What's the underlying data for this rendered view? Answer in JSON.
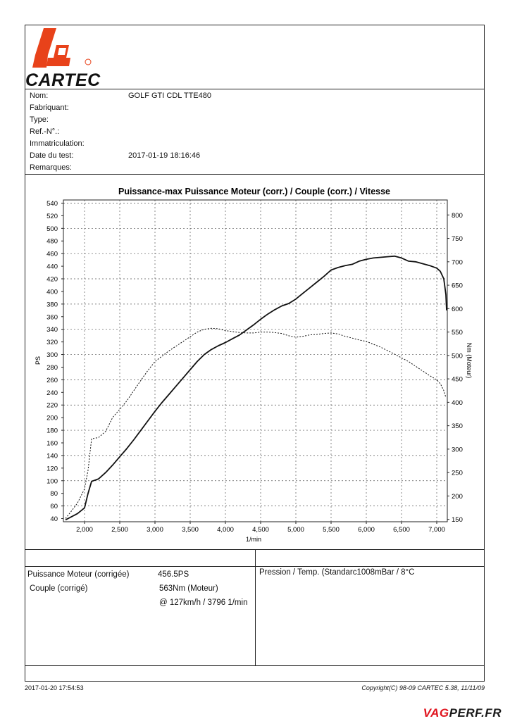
{
  "header": {
    "brand": "CARTEC",
    "fields": [
      {
        "label": "Nom:",
        "value": "GOLF GTI CDL TTE480"
      },
      {
        "label": "Fabriquant:",
        "value": ""
      },
      {
        "label": "Type:",
        "value": ""
      },
      {
        "label": "Ref.-N°.:",
        "value": ""
      },
      {
        "label": "Immatriculation:",
        "value": ""
      },
      {
        "label": "Date du test:",
        "value": "2017-01-19 18:16:46"
      },
      {
        "label": "Remarques:",
        "value": ""
      }
    ]
  },
  "chart_data": {
    "type": "line",
    "title": "Puissance-max Puissance Moteur (corr.) / Couple (corr.) / Vitesse",
    "xlabel": "1/min",
    "ylabel": "PS",
    "y2label": "Nm (Moteur)",
    "xlim": [
      1700,
      7150
    ],
    "ylim": [
      35,
      545
    ],
    "y2lim": [
      145,
      832
    ],
    "x_ticks": [
      2000,
      2500,
      3000,
      3500,
      4000,
      4500,
      5000,
      5500,
      6000,
      6500,
      7000
    ],
    "x_tick_labels": [
      "2,000",
      "2,500",
      "3,000",
      "3,500",
      "4,000",
      "4,500",
      "5,000",
      "5,500",
      "6,000",
      "6,500",
      "7,000"
    ],
    "y_ticks": [
      40,
      60,
      80,
      100,
      120,
      140,
      160,
      180,
      200,
      220,
      240,
      260,
      280,
      300,
      320,
      340,
      360,
      380,
      400,
      420,
      440,
      460,
      480,
      500,
      520,
      540
    ],
    "y2_ticks": [
      150,
      200,
      250,
      300,
      350,
      400,
      450,
      500,
      550,
      600,
      650,
      700,
      750,
      800
    ],
    "grid": true,
    "series": [
      {
        "axis": "left",
        "style": "solid",
        "x": [
          1730,
          1800,
          1900,
          2000,
          2050,
          2100,
          2200,
          2300,
          2400,
          2500,
          2600,
          2700,
          2800,
          2900,
          3000,
          3100,
          3200,
          3300,
          3400,
          3500,
          3600,
          3700,
          3800,
          3900,
          4000,
          4100,
          4200,
          4300,
          4400,
          4500,
          4600,
          4700,
          4800,
          4900,
          5000,
          5100,
          5200,
          5300,
          5400,
          5500,
          5600,
          5700,
          5800,
          5900,
          6000,
          6100,
          6200,
          6300,
          6400,
          6500,
          6600,
          6700,
          6800,
          6900,
          7000,
          7050,
          7100,
          7130,
          7140
        ],
        "values": [
          38,
          42,
          48,
          57,
          80,
          99,
          103,
          113,
          125,
          138,
          151,
          165,
          180,
          195,
          210,
          224,
          237,
          250,
          263,
          276,
          289,
          300,
          308,
          314,
          319,
          325,
          331,
          339,
          347,
          356,
          364,
          371,
          377,
          381,
          388,
          397,
          406,
          415,
          424,
          434,
          438,
          441,
          443,
          448,
          451,
          453,
          454,
          455,
          456,
          453,
          448,
          447,
          444,
          441,
          437,
          432,
          420,
          395,
          370
        ]
      },
      {
        "axis": "right",
        "style": "dashed",
        "x": [
          1730,
          1800,
          1900,
          2000,
          2050,
          2100,
          2200,
          2300,
          2400,
          2500,
          2600,
          2700,
          2800,
          2900,
          3000,
          3200,
          3400,
          3600,
          3700,
          3800,
          3900,
          4000,
          4100,
          4200,
          4300,
          4400,
          4500,
          4600,
          4700,
          4800,
          4900,
          5000,
          5100,
          5200,
          5300,
          5400,
          5500,
          5600,
          5700,
          5800,
          5900,
          6000,
          6200,
          6400,
          6600,
          6800,
          6900,
          7000,
          7050,
          7100,
          7130
        ],
        "values": [
          152,
          165,
          185,
          215,
          255,
          322,
          325,
          338,
          368,
          385,
          403,
          425,
          447,
          468,
          487,
          510,
          530,
          550,
          556,
          558,
          557,
          553,
          551,
          549,
          548,
          548,
          550,
          550,
          549,
          547,
          542,
          539,
          541,
          544,
          545,
          547,
          548,
          546,
          541,
          537,
          533,
          530,
          518,
          503,
          487,
          467,
          457,
          448,
          440,
          425,
          410
        ]
      }
    ]
  },
  "results": {
    "power_label": "Puissance Moteur (corrigée)",
    "power_value": "456.5PS",
    "torque_label": "Couple (corrigé)",
    "torque_value": "563Nm (Moteur)",
    "torque_detail": "@ 127km/h / 3796 1/min",
    "pressure_text": "Pression / Temp. (Standarc1008mBar / 8°C"
  },
  "footer": {
    "timestamp": "2017-01-20 17:54:53",
    "copyright": "Copyright(C) 98-09 CARTEC 5.38, 11/11/09"
  },
  "watermark": {
    "part1": "VAG",
    "part2": "PERF.FR",
    "color1": "#e0141e",
    "color2": "#1a1a1a"
  },
  "colors": {
    "logo_red": "#e8421a",
    "grid": "#555555"
  }
}
